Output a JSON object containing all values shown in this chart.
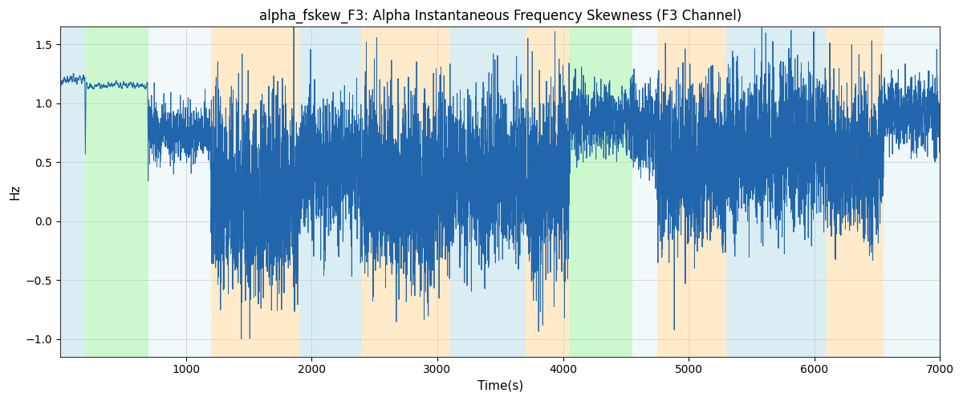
{
  "title": "alpha_fskew_F3: Alpha Instantaneous Frequency Skewness (F3 Channel)",
  "xlabel": "Time(s)",
  "ylabel": "Hz",
  "xlim": [
    0,
    7000
  ],
  "ylim": [
    -1.15,
    1.65
  ],
  "line_color": "#2166ac",
  "line_width": 0.7,
  "bg_color": "white",
  "grid_color": "#bbbbbb",
  "title_fontsize": 12,
  "label_fontsize": 11,
  "colored_regions": [
    {
      "xmin": 0,
      "xmax": 200,
      "color": "#add8e6",
      "alpha": 0.45
    },
    {
      "xmin": 200,
      "xmax": 700,
      "color": "#90ee90",
      "alpha": 0.45
    },
    {
      "xmin": 700,
      "xmax": 1200,
      "color": "#add8e6",
      "alpha": 0.15
    },
    {
      "xmin": 1200,
      "xmax": 1900,
      "color": "#ffd9a0",
      "alpha": 0.55
    },
    {
      "xmin": 1900,
      "xmax": 2400,
      "color": "#add8e6",
      "alpha": 0.45
    },
    {
      "xmin": 2400,
      "xmax": 3100,
      "color": "#ffd9a0",
      "alpha": 0.55
    },
    {
      "xmin": 3100,
      "xmax": 3700,
      "color": "#add8e6",
      "alpha": 0.45
    },
    {
      "xmin": 3700,
      "xmax": 4050,
      "color": "#ffd9a0",
      "alpha": 0.55
    },
    {
      "xmin": 4050,
      "xmax": 4550,
      "color": "#90ee90",
      "alpha": 0.45
    },
    {
      "xmin": 4550,
      "xmax": 4750,
      "color": "#add8e6",
      "alpha": 0.15
    },
    {
      "xmin": 4750,
      "xmax": 5300,
      "color": "#ffd9a0",
      "alpha": 0.55
    },
    {
      "xmin": 5300,
      "xmax": 6100,
      "color": "#add8e6",
      "alpha": 0.45
    },
    {
      "xmin": 6100,
      "xmax": 6550,
      "color": "#ffd9a0",
      "alpha": 0.55
    },
    {
      "xmin": 6550,
      "xmax": 7000,
      "color": "#add8e6",
      "alpha": 0.2
    }
  ],
  "xticks": [
    1000,
    2000,
    3000,
    4000,
    5000,
    6000,
    7000
  ],
  "yticks": [
    -1.0,
    -0.5,
    0.0,
    0.5,
    1.0,
    1.5
  ],
  "seed": 42,
  "n_points": 14000
}
